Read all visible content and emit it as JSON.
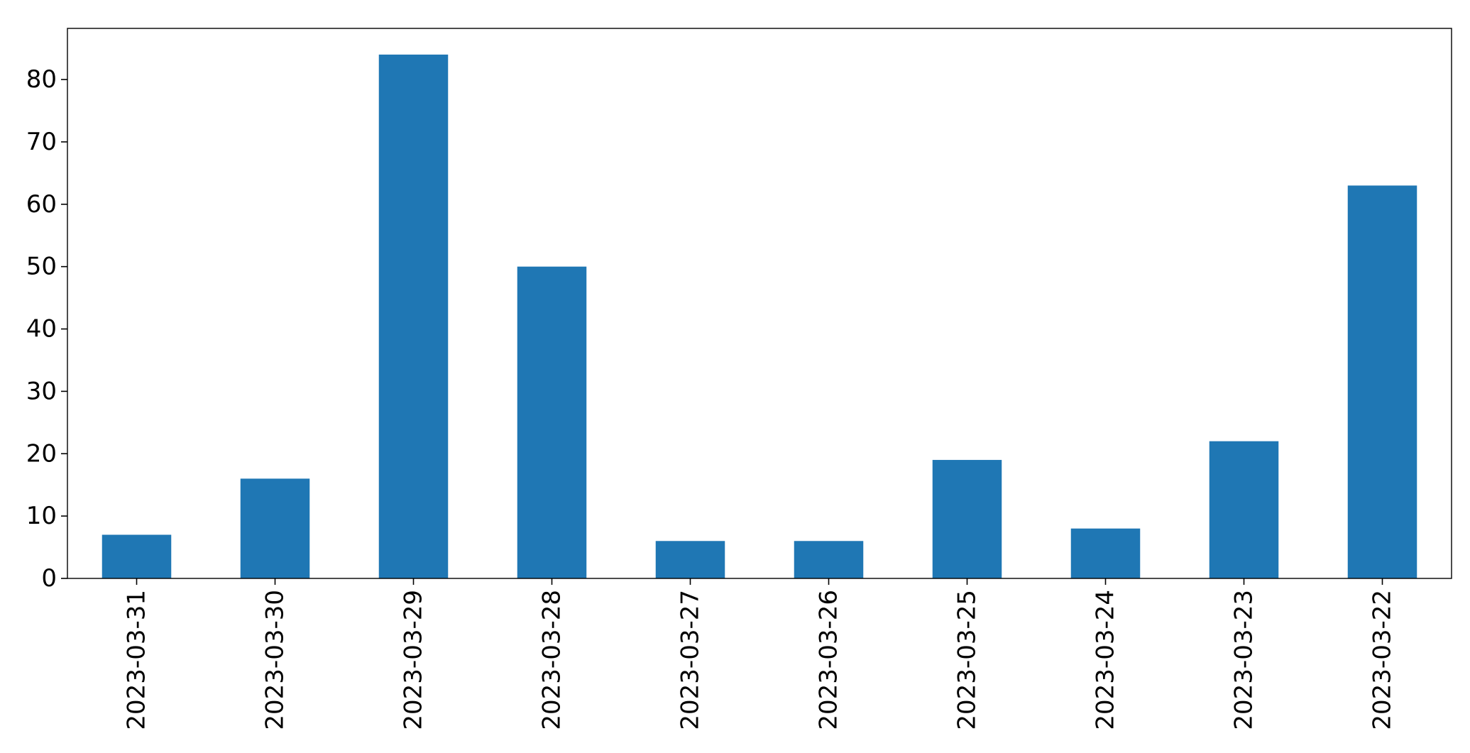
{
  "chart_data": {
    "type": "bar",
    "title": "",
    "xlabel": "",
    "ylabel": "",
    "categories": [
      "2023-03-31",
      "2023-03-30",
      "2023-03-29",
      "2023-03-28",
      "2023-03-27",
      "2023-03-26",
      "2023-03-25",
      "2023-03-24",
      "2023-03-23",
      "2023-03-22"
    ],
    "values": [
      7,
      16,
      84,
      50,
      6,
      6,
      19,
      8,
      22,
      63
    ],
    "ylim": [
      0,
      88.2
    ],
    "yticks": [
      0,
      10,
      20,
      30,
      40,
      50,
      60,
      70,
      80
    ],
    "grid": false,
    "legend": "none",
    "colors": {
      "bar": "#1f77b4",
      "axis": "#000000",
      "background": "#ffffff"
    }
  }
}
